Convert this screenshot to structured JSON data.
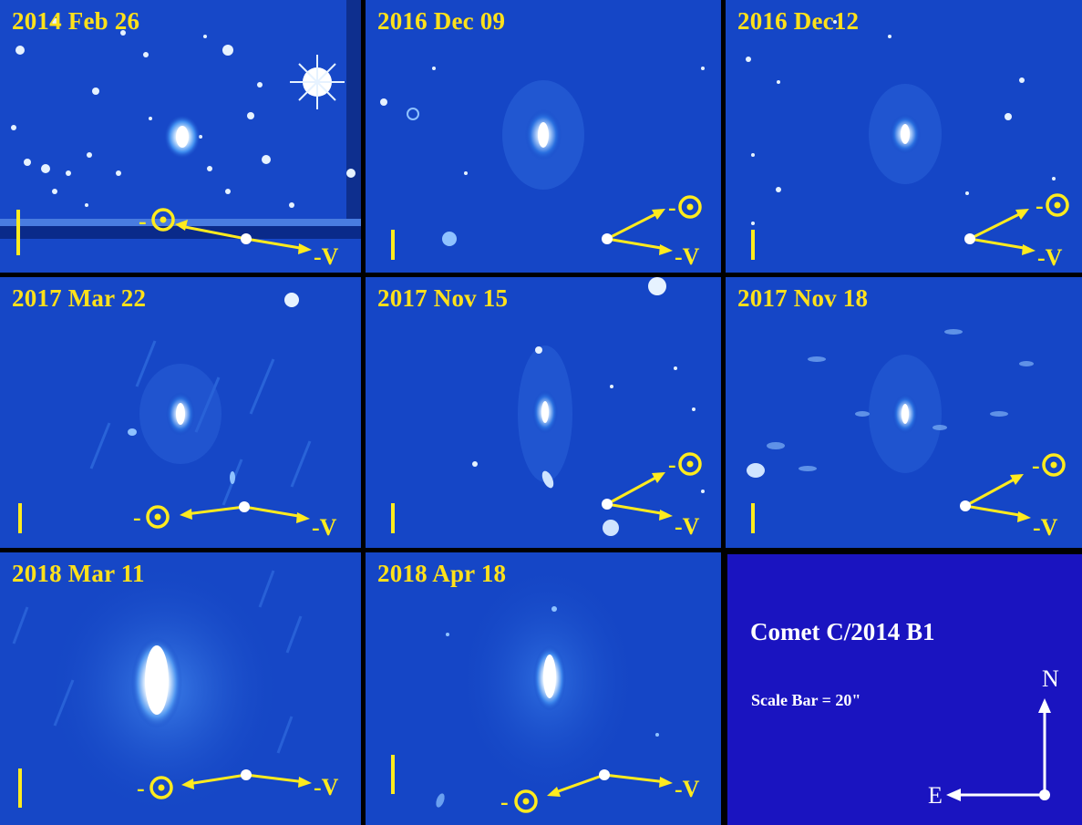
{
  "figure": {
    "panels": [
      {
        "id": "p1",
        "date": "2014 Feb 26",
        "sun_label": "-",
        "velocity_label": "-V"
      },
      {
        "id": "p2",
        "date": "2016 Dec 09",
        "sun_label": "-",
        "velocity_label": "-V"
      },
      {
        "id": "p3",
        "date": "2016 Dec12",
        "sun_label": "-",
        "velocity_label": "-V"
      },
      {
        "id": "p4",
        "date": "2017 Mar 22",
        "sun_label": "-",
        "velocity_label": "-V"
      },
      {
        "id": "p5",
        "date": "2017 Nov 15",
        "sun_label": "-",
        "velocity_label": "-V"
      },
      {
        "id": "p6",
        "date": "2017 Nov 18",
        "sun_label": "-",
        "velocity_label": "-V"
      },
      {
        "id": "p7",
        "date": "2018 Mar 11",
        "sun_label": "-",
        "velocity_label": "-V"
      },
      {
        "id": "p8",
        "date": "2018 Apr 18",
        "sun_label": "-",
        "velocity_label": "-V"
      }
    ],
    "info": {
      "title": "Comet C/2014 B1",
      "scale_text": "Scale Bar = 20\"",
      "north_label": "N",
      "east_label": "E"
    }
  },
  "colors": {
    "sky": "#1446c4",
    "label": "#ffe11a",
    "arrow": "#ffeb1e",
    "info_bg": "#1a14c0"
  }
}
